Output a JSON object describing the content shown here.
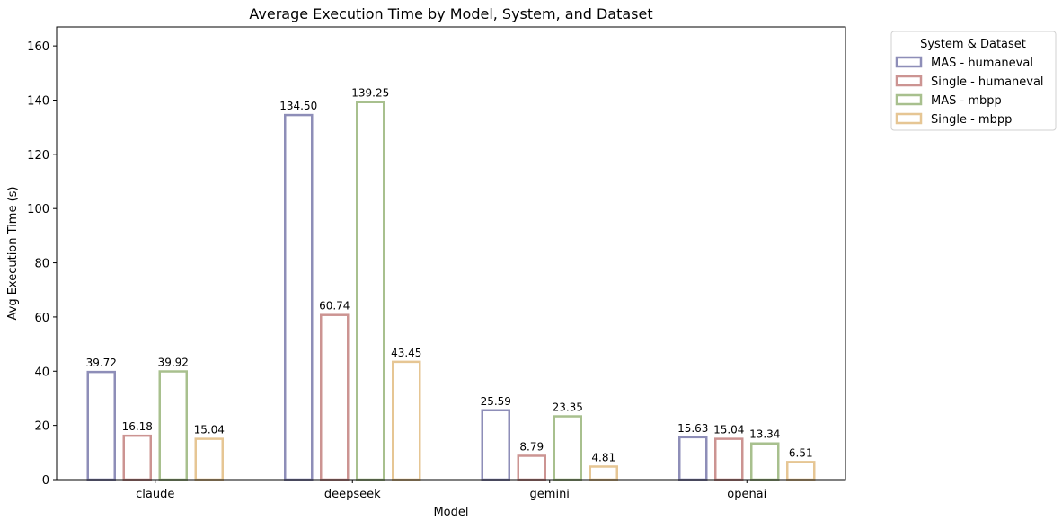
{
  "chart_data": {
    "type": "bar",
    "title": "Average Execution Time by Model, System, and Dataset",
    "xlabel": "Model",
    "ylabel": "Avg Execution Time (s)",
    "categories": [
      "claude",
      "deepseek",
      "gemini",
      "openai"
    ],
    "ylim": [
      0,
      167
    ],
    "yticks": [
      0,
      20,
      40,
      60,
      80,
      100,
      120,
      140,
      160
    ],
    "grid": false,
    "legend": {
      "title": "System & Dataset",
      "placement": "outside-top-right"
    },
    "series": [
      {
        "name": "MAS - humaneval",
        "color": "#8e8eb8",
        "values": [
          39.72,
          134.5,
          25.59,
          15.63
        ],
        "labels": [
          "39.72",
          "134.50",
          "25.59",
          "15.63"
        ]
      },
      {
        "name": "Single - humaneval",
        "color": "#cc9492",
        "values": [
          16.18,
          60.74,
          8.79,
          15.04
        ],
        "labels": [
          "16.18",
          "60.74",
          "8.79",
          "15.04"
        ]
      },
      {
        "name": "MAS - mbpp",
        "color": "#a8c08e",
        "values": [
          39.92,
          139.25,
          23.35,
          13.34
        ],
        "labels": [
          "39.92",
          "139.25",
          "23.35",
          "13.34"
        ]
      },
      {
        "name": "Single - mbpp",
        "color": "#e6c694",
        "values": [
          15.04,
          43.45,
          4.81,
          6.51
        ],
        "labels": [
          "15.04",
          "43.45",
          "4.81",
          "6.51"
        ]
      }
    ]
  }
}
